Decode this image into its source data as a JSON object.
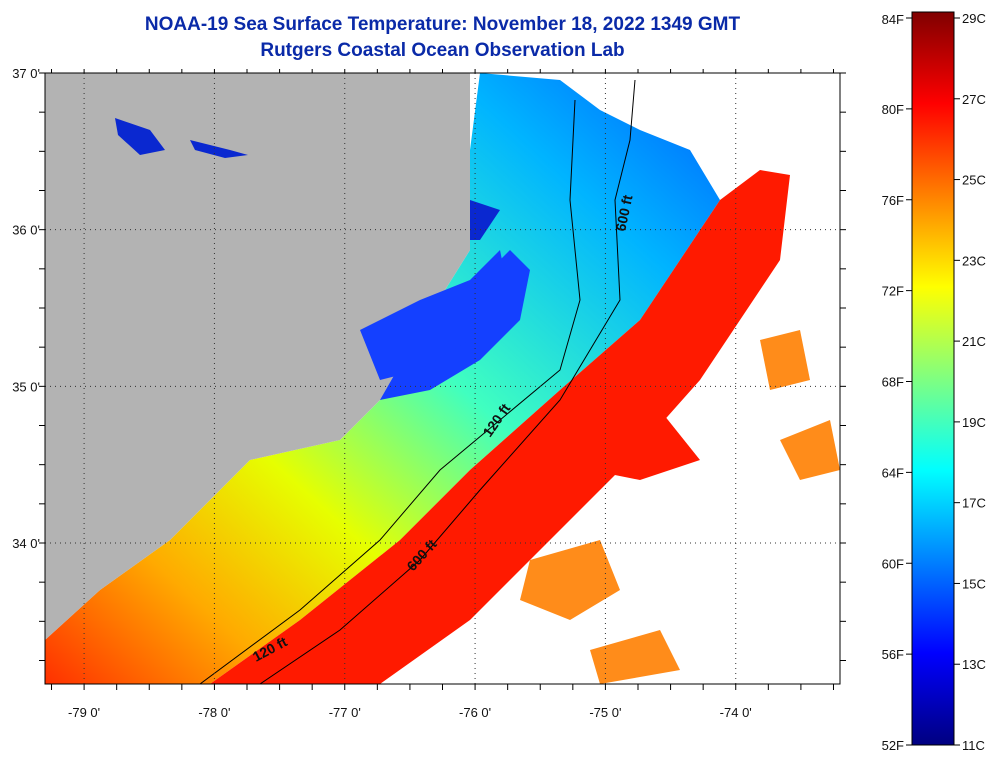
{
  "header": {
    "title_line1": "NOAA-19 Sea Surface Temperature:  November 18, 2022 1349 GMT",
    "title_line2": "Rutgers Coastal Ocean Observation Lab"
  },
  "map": {
    "lon_ticks": [
      "-79 0'",
      "-78 0'",
      "-77 0'",
      "-76 0'",
      "-75 0'",
      "-74 0'"
    ],
    "lat_ticks": [
      "37 0'",
      "36 0'",
      "35 0'",
      "34 0'"
    ],
    "lon_values": [
      -79,
      -78,
      -77,
      -76,
      -75,
      -74
    ],
    "lat_values": [
      37,
      36,
      35,
      34
    ],
    "extent": {
      "lon": [
        -79.3,
        -73.2
      ],
      "lat": [
        33.1,
        37.0
      ]
    },
    "contour_labels": [
      "600 ft",
      "120 ft",
      "600 ft",
      "120 ft"
    ],
    "colors": {
      "land": "#b3b3b3",
      "cloud": "#ffffff",
      "grid": "#333333"
    }
  },
  "colorbar": {
    "fahrenheit": [
      "84F",
      "80F",
      "76F",
      "72F",
      "68F",
      "64F",
      "60F",
      "56F",
      "52F"
    ],
    "celsius": [
      "29C",
      "27C",
      "25C",
      "23C",
      "21C",
      "19C",
      "17C",
      "15C",
      "13C",
      "11C"
    ],
    "range_c": [
      11,
      29
    ],
    "range_f": [
      52,
      84
    ],
    "colors": [
      "#000080",
      "#0000ff",
      "#0080ff",
      "#00ffff",
      "#80ff80",
      "#ffff00",
      "#ff8000",
      "#ff0000",
      "#800000"
    ]
  }
}
